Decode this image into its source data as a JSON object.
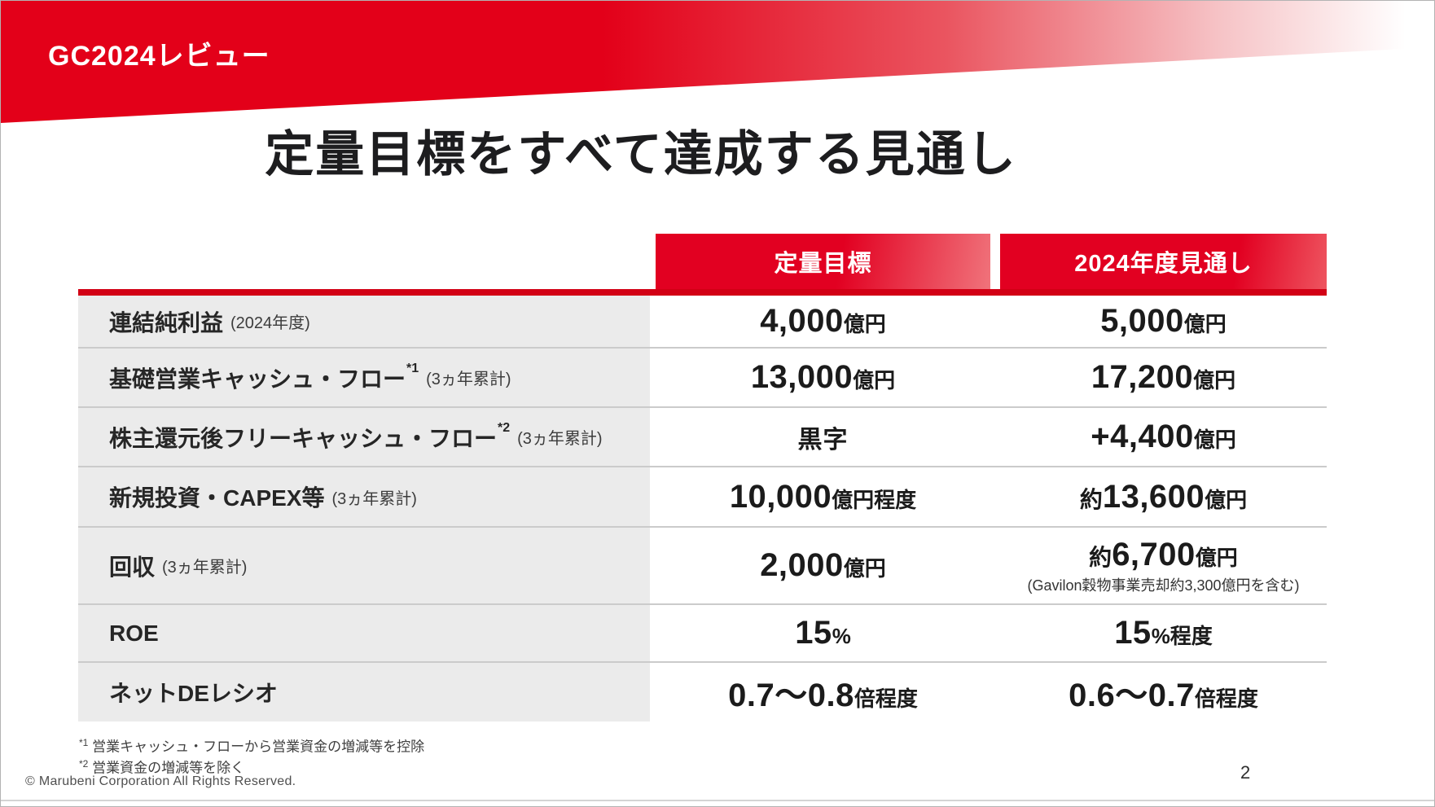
{
  "header": {
    "section_label": "GC2024レビュー"
  },
  "title": "定量目標をすべて達成する見通し",
  "colors": {
    "brand_red": "#e30019",
    "header_cell_red": "#e20021",
    "table_rule_red": "#d20015",
    "label_column_gray": "#ebebeb",
    "row_divider_gray": "#cbcbcb",
    "text_dark": "#1b1b1b"
  },
  "table": {
    "columns": [
      "定量目標",
      "2024年度見通し"
    ],
    "rows": [
      {
        "label": "連結純利益",
        "sup": "",
        "note": "(2024年度)",
        "target": {
          "pre": "",
          "num": "4,000",
          "unit": "億円",
          "small_num": false,
          "subnote": ""
        },
        "forecast": {
          "pre": "",
          "num": "5,000",
          "unit": "億円",
          "small_num": false,
          "subnote": ""
        }
      },
      {
        "label": "基礎営業キャッシュ・フロー",
        "sup": "*1",
        "note": "(3ヵ年累計)",
        "target": {
          "pre": "",
          "num": "13,000",
          "unit": "億円",
          "small_num": false,
          "subnote": ""
        },
        "forecast": {
          "pre": "",
          "num": "17,200",
          "unit": "億円",
          "small_num": false,
          "subnote": ""
        }
      },
      {
        "label": "株主還元後フリーキャッシュ・フロー",
        "sup": "*2",
        "note": "(3ヵ年累計)",
        "target": {
          "pre": "",
          "num": "黒字",
          "unit": "",
          "small_num": true,
          "subnote": ""
        },
        "forecast": {
          "pre": "",
          "num": "+4,400",
          "unit": "億円",
          "small_num": false,
          "subnote": ""
        }
      },
      {
        "label": "新規投資・CAPEX等",
        "sup": "",
        "note": "(3ヵ年累計)",
        "target": {
          "pre": "",
          "num": "10,000",
          "unit": "億円程度",
          "small_num": false,
          "subnote": ""
        },
        "forecast": {
          "pre": "約",
          "num": "13,600",
          "unit": "億円",
          "small_num": false,
          "subnote": ""
        }
      },
      {
        "label": "回収",
        "sup": "",
        "note": "(3ヵ年累計)",
        "target": {
          "pre": "",
          "num": "2,000",
          "unit": "億円",
          "small_num": false,
          "subnote": ""
        },
        "forecast": {
          "pre": "約",
          "num": "6,700",
          "unit": "億円",
          "small_num": false,
          "subnote": "(Gavilon穀物事業売却約3,300億円を含む)"
        }
      },
      {
        "label": "ROE",
        "sup": "",
        "note": "",
        "target": {
          "pre": "",
          "num": "15",
          "unit": "%",
          "small_num": false,
          "subnote": ""
        },
        "forecast": {
          "pre": "",
          "num": "15",
          "unit": "%程度",
          "small_num": false,
          "subnote": ""
        }
      },
      {
        "label": "ネットDEレシオ",
        "sup": "",
        "note": "",
        "target": {
          "pre": "",
          "num": "0.7〜0.8",
          "unit": "倍程度",
          "small_num": false,
          "subnote": ""
        },
        "forecast": {
          "pre": "",
          "num": "0.6〜0.7",
          "unit": "倍程度",
          "small_num": false,
          "subnote": ""
        }
      }
    ]
  },
  "footnotes": [
    {
      "sup": "*1",
      "text": "営業キャッシュ・フローから営業資金の増減等を控除"
    },
    {
      "sup": "*2",
      "text": "営業資金の増減等を除く"
    }
  ],
  "footer": {
    "copyright": "© Marubeni Corporation All Rights Reserved.",
    "page_number": "2"
  }
}
